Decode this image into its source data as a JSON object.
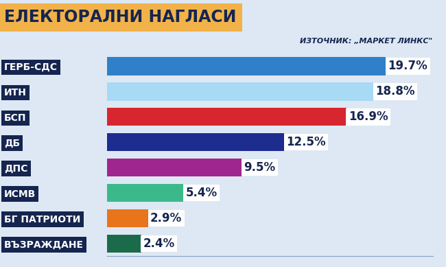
{
  "chart_data": {
    "type": "bar",
    "orientation": "horizontal",
    "title": "ЕЛЕКТОРАЛНИ НАГЛАСИ",
    "subtitle": "ИЗТОЧНИК: „МАРКЕТ ЛИНКС\"",
    "categories": [
      "ГЕРБ-СДС",
      "ИТН",
      "БСП",
      "ДБ",
      "ДПС",
      "ИСМВ",
      "БГ ПАТРИОТИ",
      "ВЪЗРАЖДАНЕ"
    ],
    "values": [
      19.7,
      18.8,
      16.9,
      12.5,
      9.5,
      5.4,
      2.9,
      2.4
    ],
    "value_labels": [
      "19.7%",
      "18.8%",
      "16.9%",
      "12.5%",
      "9.5%",
      "5.4%",
      "2.9%",
      "2.4%"
    ],
    "colors": [
      "#2f80c8",
      "#a8d9f5",
      "#d7262f",
      "#1d2c8f",
      "#a0268f",
      "#3cb98b",
      "#e8741b",
      "#1b6b4b"
    ],
    "xlim": [
      0,
      23
    ],
    "xticks": [],
    "data_labels": true,
    "tick_labels": "y",
    "grid": false
  }
}
